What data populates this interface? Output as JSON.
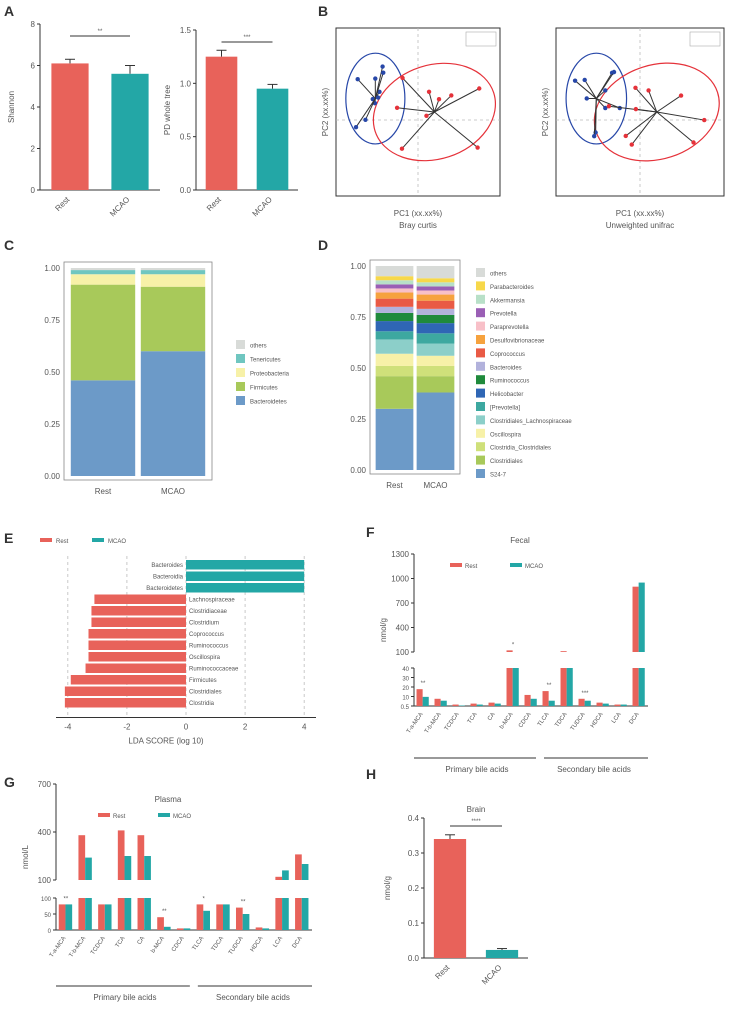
{
  "colors": {
    "rest": "#e8625a",
    "mcao": "#23a7a6",
    "blue": "#2747a8",
    "red": "#e5323a"
  },
  "panels": {
    "A": "A",
    "B": "B",
    "C": "C",
    "D": "D",
    "E": "E",
    "F": "F",
    "G": "G",
    "H": "H"
  },
  "chart_data": [
    {
      "panel": "A-left",
      "type": "bar",
      "categories": [
        "Rest",
        "MCAO"
      ],
      "values": [
        6.1,
        5.6
      ],
      "errors": [
        0.2,
        0.4
      ],
      "ylabel": "Shannon",
      "ylim": [
        0,
        8
      ],
      "yticks": [
        "0",
        "2",
        "4",
        "6",
        "8"
      ],
      "signif": "**"
    },
    {
      "panel": "A-right",
      "type": "bar",
      "categories": [
        "Rest",
        "MCAO"
      ],
      "values": [
        1.25,
        0.95
      ],
      "errors": [
        0.06,
        0.04
      ],
      "ylabel": "PD whole tree",
      "ylim": [
        0,
        1.5
      ],
      "yticks": [
        "0.0",
        "0.5",
        "1.0",
        "1.5"
      ],
      "signif": "***"
    },
    {
      "panel": "B-left",
      "type": "scatter",
      "xlabel": "PC1 (xx.xx%)",
      "ylabel": "PC2 (xx.xx%)",
      "subtitle": "Bray curtis"
    },
    {
      "panel": "B-right",
      "type": "scatter",
      "xlabel": "PC1 (xx.xx%)",
      "ylabel": "PC2 (xx.xx%)",
      "subtitle": "Unweighted unifrac"
    },
    {
      "panel": "C",
      "type": "bar",
      "stacked": true,
      "categories": [
        "Rest",
        "MCAO"
      ],
      "yticks": [
        "0.00",
        "0.25",
        "0.50",
        "0.75",
        "1.00"
      ],
      "series": [
        {
          "name": "Bacteroidetes",
          "color": "#6c9ac8",
          "values": [
            0.46,
            0.6
          ]
        },
        {
          "name": "Firmicutes",
          "color": "#a8c95a",
          "values": [
            0.46,
            0.31
          ]
        },
        {
          "name": "Proteobacteria",
          "color": "#f7f1a8",
          "values": [
            0.05,
            0.06
          ]
        },
        {
          "name": "Tenericutes",
          "color": "#6fc6c0",
          "values": [
            0.02,
            0.02
          ]
        },
        {
          "name": "others",
          "color": "#d8dbd8",
          "values": [
            0.01,
            0.01
          ]
        }
      ]
    },
    {
      "panel": "D",
      "type": "bar",
      "stacked": true,
      "categories": [
        "Rest",
        "MCAO"
      ],
      "yticks": [
        "0.00",
        "0.25",
        "0.50",
        "0.75",
        "1.00"
      ],
      "series": [
        {
          "name": "S24-7",
          "color": "#6c9ac8",
          "values": [
            0.3,
            0.38
          ]
        },
        {
          "name": "Clostridiales",
          "color": "#a8c95a",
          "values": [
            0.16,
            0.08
          ]
        },
        {
          "name": "Clostridia_Clostridiales",
          "color": "#cfe07a",
          "values": [
            0.05,
            0.05
          ]
        },
        {
          "name": "Oscillospira",
          "color": "#f7f1a8",
          "values": [
            0.06,
            0.05
          ]
        },
        {
          "name": "Clostridiales_Lachnospiraceae",
          "color": "#8ccfc9",
          "values": [
            0.07,
            0.06
          ]
        },
        {
          "name": "[Prevotella]",
          "color": "#3da8a0",
          "values": [
            0.04,
            0.05
          ]
        },
        {
          "name": "Helicobacter",
          "color": "#2f66b5",
          "values": [
            0.05,
            0.05
          ]
        },
        {
          "name": "Ruminococcus",
          "color": "#1f8a3c",
          "values": [
            0.04,
            0.04
          ]
        },
        {
          "name": "Bacteroides",
          "color": "#b2b2dc",
          "values": [
            0.03,
            0.03
          ]
        },
        {
          "name": "Coprococcus",
          "color": "#e95a45",
          "values": [
            0.04,
            0.04
          ]
        },
        {
          "name": "Desulfovibrionaceae",
          "color": "#f6a23e",
          "values": [
            0.03,
            0.03
          ]
        },
        {
          "name": "Paraprevotella",
          "color": "#f8c0c8",
          "values": [
            0.02,
            0.02
          ]
        },
        {
          "name": "Prevotella",
          "color": "#9a5fb5",
          "values": [
            0.02,
            0.02
          ]
        },
        {
          "name": "Akkermansia",
          "color": "#b8e0c8",
          "values": [
            0.02,
            0.02
          ]
        },
        {
          "name": "Parabacteroides",
          "color": "#f7d84a",
          "values": [
            0.02,
            0.02
          ]
        },
        {
          "name": "others",
          "color": "#d8dbd8",
          "values": [
            0.05,
            0.06
          ]
        }
      ]
    },
    {
      "panel": "E",
      "type": "bar",
      "orientation": "horizontal",
      "xlabel": "LDA SCORE (log 10)",
      "xlim": [
        -4.4,
        4.4
      ],
      "xticks": [
        "-4",
        "-2",
        "0",
        "2",
        "4"
      ],
      "legend": [
        "Rest",
        "MCAO"
      ],
      "categories": [
        "Bacteroides",
        "Bacteroidia",
        "Bacteroidetes",
        "Lachnospiraceae",
        "Clostridiaceae",
        "Clostridium",
        "Coprococcus",
        "Ruminococcus",
        "Oscillospira",
        "Ruminococcaceae",
        "Firmicutes",
        "Clostridiales",
        "Clostridia"
      ],
      "groups": [
        "MCAO",
        "MCAO",
        "MCAO",
        "Rest",
        "Rest",
        "Rest",
        "Rest",
        "Rest",
        "Rest",
        "Rest",
        "Rest",
        "Rest",
        "Rest"
      ],
      "values": [
        4.0,
        4.0,
        4.0,
        -3.1,
        -3.2,
        -3.2,
        -3.3,
        -3.3,
        -3.3,
        -3.4,
        -3.9,
        -4.1,
        -4.1
      ]
    },
    {
      "panel": "F",
      "type": "bar",
      "title": "Fecal",
      "ylabel": "nmol/g",
      "legend": [
        "Rest",
        "MCAO"
      ],
      "yticks_top": [
        "100",
        "400",
        "700",
        "1000",
        "1300"
      ],
      "yticks_bottom": [
        "0.5",
        "10",
        "20",
        "30",
        "40"
      ],
      "group_labels": [
        "Primary bile acids",
        "Secondary bile acids"
      ],
      "categories": [
        "T-a-MCA",
        "T-b-MCA",
        "TCDCA",
        "TCA",
        "CA",
        "b-MCA",
        "CDCA",
        "TLCA",
        "TDCA",
        "TUDCA",
        "HDCA",
        "LCA",
        "DCA"
      ],
      "rest": [
        18,
        8,
        2,
        3,
        4,
        120,
        12,
        16,
        110,
        8,
        4,
        2,
        900
      ],
      "mcao": [
        10,
        6,
        1,
        2,
        3,
        80,
        8,
        6,
        100,
        6,
        3,
        2,
        950
      ],
      "signif_labels": [
        "**",
        "*",
        "**",
        "***"
      ]
    },
    {
      "panel": "G",
      "type": "bar",
      "title": "Plasma",
      "ylabel": "nmol/L",
      "legend": [
        "Rest",
        "MCAO"
      ],
      "yticks_top": [
        "100",
        "400",
        "700"
      ],
      "yticks_bottom": [
        "0",
        "50",
        "100"
      ],
      "group_labels": [
        "Primary bile acids",
        "Secondary bile acids"
      ],
      "categories": [
        "T-a-MCA",
        "T-b-MCA",
        "TCDCA",
        "TCA",
        "CA",
        "b-MCA",
        "CDCA",
        "TLCA",
        "TDCA",
        "TUDCA",
        "HDCA",
        "LCA",
        "DCA"
      ],
      "rest": [
        80,
        380,
        80,
        410,
        380,
        40,
        5,
        80,
        80,
        70,
        8,
        120,
        260
      ],
      "mcao": [
        80,
        240,
        80,
        250,
        250,
        10,
        5,
        60,
        80,
        50,
        5,
        160,
        200
      ],
      "signif_labels": [
        "**",
        "**",
        "*",
        "**"
      ]
    },
    {
      "panel": "H",
      "type": "bar",
      "title": "Brain",
      "ylabel": "nmol/g",
      "categories": [
        "Rest",
        "MCAO"
      ],
      "values": [
        0.34,
        0.023
      ],
      "errors": [
        0.012,
        0.004
      ],
      "ylim": [
        0.0,
        0.4
      ],
      "yticks": [
        "0.0",
        "0.1",
        "0.2",
        "0.3",
        "0.4"
      ],
      "signif": "****"
    }
  ]
}
